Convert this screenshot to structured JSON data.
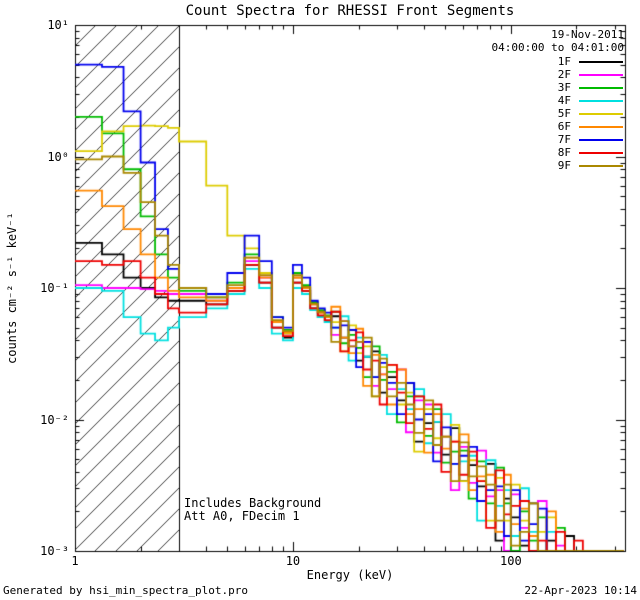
{
  "header": {
    "date": "19-Nov-2011",
    "time_range": "04:00:00 to 04:01:00"
  },
  "footer": {
    "generated_by": "Generated by hsi_min_spectra_plot.pro",
    "timestamp": "22-Apr-2023 10:14"
  },
  "chart_data": {
    "type": "line",
    "mode": "histogram-steps, log-log axes",
    "title": "Count Spectra for RHESSI Front Segments",
    "xlabel": "Energy (keV)",
    "ylabel": "counts cm⁻² s⁻¹ keV⁻¹",
    "xlim": [
      1,
      334
    ],
    "ylim": [
      0.001,
      10
    ],
    "x_tick_values": [
      1,
      10,
      100
    ],
    "x_tick_labels": [
      "1",
      "10",
      "100"
    ],
    "y_tick_values": [
      10,
      1,
      0.1,
      0.01,
      0.001
    ],
    "y_tick_labels": [
      "10¹",
      "10⁰",
      "10⁻¹",
      "10⁻²",
      "10⁻³"
    ],
    "hatch_region": {
      "xmin": 1,
      "xmax": 3
    },
    "annotations": [
      "Includes Background",
      "Att A0, FDecim 1"
    ],
    "energy_edges": [
      1.0,
      1.33,
      1.67,
      2.0,
      2.33,
      2.67,
      3.0,
      4,
      5,
      6,
      7,
      8,
      9,
      10,
      11,
      12,
      13,
      14,
      15,
      16.5,
      18,
      19.5,
      21,
      23,
      25,
      27,
      30,
      33,
      36,
      40,
      44,
      48,
      53,
      58,
      64,
      70,
      77,
      85,
      93,
      100,
      110,
      121,
      133,
      146,
      161,
      177,
      195,
      214,
      236,
      259,
      285,
      330
    ],
    "series": [
      {
        "name": "1F",
        "color": "#000000",
        "values": [
          0.22,
          0.18,
          0.12,
          0.1,
          0.085,
          0.08,
          0.08,
          0.075,
          0.095,
          0.15,
          0.11,
          0.05,
          0.042,
          0.11,
          0.095,
          0.07,
          0.06,
          0.055,
          0.061,
          0.042,
          0.048,
          0.028,
          0.03,
          0.033,
          0.016,
          0.021,
          0.014,
          0.019,
          0.0068,
          0.0094,
          0.0096,
          0.0054,
          0.0086,
          0.0034,
          0.0045,
          0.0031,
          0.0046,
          0.0012,
          0.0025,
          0.0018,
          0.0011,
          0.0023,
          0.001,
          0.0012,
          0.00046,
          0.0013,
          0.00043,
          0.00055,
          0.00059,
          0.00023,
          0.00026
        ]
      },
      {
        "name": "2F",
        "color": "#ff00ff",
        "values": [
          0.105,
          0.1,
          0.1,
          0.098,
          0.095,
          0.09,
          0.09,
          0.08,
          0.1,
          0.16,
          0.12,
          0.055,
          0.045,
          0.12,
          0.1,
          0.075,
          0.065,
          0.06,
          0.044,
          0.056,
          0.036,
          0.039,
          0.039,
          0.018,
          0.022,
          0.017,
          0.024,
          0.008,
          0.014,
          0.013,
          0.0056,
          0.0074,
          0.0029,
          0.0062,
          0.0033,
          0.0058,
          0.0026,
          0.0029,
          0.00084,
          0.0027,
          0.0015,
          0.00078,
          0.0024,
          0.00073,
          0.0011,
          0.00033,
          0.00059,
          0.00092,
          0.00023,
          0.00043,
          0.00023
        ]
      },
      {
        "name": "3F",
        "color": "#00bb00",
        "values": [
          2.0,
          1.5,
          0.8,
          0.35,
          0.18,
          0.12,
          0.095,
          0.085,
          0.11,
          0.18,
          0.13,
          0.06,
          0.048,
          0.13,
          0.105,
          0.078,
          0.068,
          0.062,
          0.066,
          0.038,
          0.044,
          0.035,
          0.021,
          0.036,
          0.02,
          0.023,
          0.0095,
          0.015,
          0.015,
          0.0075,
          0.012,
          0.0047,
          0.0057,
          0.0058,
          0.0025,
          0.0048,
          0.0023,
          0.0043,
          0.0023,
          0.0009,
          0.002,
          0.0012,
          0.0018,
          0.00055,
          0.0015,
          0.00065,
          0.00038,
          0.00064,
          0.0002,
          0.00059,
          0.00029
        ]
      },
      {
        "name": "4F",
        "color": "#00e0e0",
        "values": [
          0.1,
          0.095,
          0.06,
          0.045,
          0.04,
          0.05,
          0.06,
          0.07,
          0.09,
          0.14,
          0.1,
          0.045,
          0.04,
          0.1,
          0.09,
          0.068,
          0.06,
          0.055,
          0.05,
          0.061,
          0.028,
          0.042,
          0.03,
          0.021,
          0.031,
          0.011,
          0.017,
          0.012,
          0.017,
          0.0066,
          0.0096,
          0.011,
          0.0046,
          0.0048,
          0.0053,
          0.0017,
          0.0049,
          0.0022,
          0.0029,
          0.0013,
          0.003,
          0.0014,
          0.00066,
          0.0014,
          0.00069,
          0.00026,
          0.00097,
          0.00032,
          0.00047,
          0.00033,
          0.00016
        ]
      },
      {
        "name": "5F",
        "color": "#ddcc00",
        "values": [
          1.1,
          1.55,
          1.7,
          1.72,
          1.7,
          1.65,
          1.3,
          0.6,
          0.25,
          0.2,
          0.13,
          0.055,
          0.045,
          0.12,
          0.1,
          0.075,
          0.065,
          0.06,
          0.055,
          0.033,
          0.052,
          0.032,
          0.036,
          0.015,
          0.025,
          0.026,
          0.013,
          0.016,
          0.0057,
          0.012,
          0.0072,
          0.0074,
          0.0091,
          0.0034,
          0.0049,
          0.0034,
          0.0017,
          0.0036,
          0.0017,
          0.0032,
          0.0017,
          0.00065,
          0.0014,
          0.0018,
          0.00054,
          0.00078,
          0.00086,
          0.00023,
          0.00039,
          0.00046,
          0.00021
        ]
      },
      {
        "name": "6F",
        "color": "#ff8800",
        "values": [
          0.55,
          0.42,
          0.28,
          0.18,
          0.12,
          0.095,
          0.085,
          0.08,
          0.1,
          0.17,
          0.12,
          0.055,
          0.046,
          0.12,
          0.1,
          0.075,
          0.065,
          0.06,
          0.072,
          0.042,
          0.032,
          0.049,
          0.018,
          0.031,
          0.022,
          0.013,
          0.024,
          0.011,
          0.012,
          0.0056,
          0.011,
          0.006,
          0.0068,
          0.0077,
          0.0029,
          0.0037,
          0.0038,
          0.0014,
          0.0038,
          0.0016,
          0.0021,
          0.0013,
          0.00077,
          0.002,
          0.00039,
          0.001,
          0.00049,
          0.0006,
          0.0007,
          0.0002,
          0.00031
        ]
      },
      {
        "name": "7F",
        "color": "#0000ee",
        "values": [
          5.0,
          4.8,
          2.2,
          0.9,
          0.28,
          0.14,
          0.1,
          0.09,
          0.13,
          0.25,
          0.16,
          0.06,
          0.05,
          0.15,
          0.12,
          0.08,
          0.07,
          0.065,
          0.05,
          0.052,
          0.048,
          0.025,
          0.039,
          0.021,
          0.027,
          0.019,
          0.011,
          0.019,
          0.01,
          0.011,
          0.0048,
          0.0087,
          0.0046,
          0.0053,
          0.0062,
          0.0024,
          0.0029,
          0.0031,
          0.0013,
          0.0029,
          0.0012,
          0.0016,
          0.0021,
          0.00055,
          0.00085,
          0.00091,
          0.00027,
          0.00078,
          0.00031,
          0.00033,
          0.00034
        ]
      },
      {
        "name": "8F",
        "color": "#ee0000",
        "values": [
          0.16,
          0.15,
          0.16,
          0.12,
          0.09,
          0.07,
          0.065,
          0.075,
          0.095,
          0.15,
          0.11,
          0.05,
          0.043,
          0.11,
          0.095,
          0.07,
          0.062,
          0.057,
          0.066,
          0.033,
          0.04,
          0.046,
          0.024,
          0.028,
          0.013,
          0.026,
          0.016,
          0.0094,
          0.015,
          0.0085,
          0.013,
          0.004,
          0.0068,
          0.0038,
          0.0057,
          0.0034,
          0.0015,
          0.0041,
          0.0019,
          0.0022,
          0.0024,
          0.00091,
          0.0012,
          0.00036,
          0.0014,
          0.00059,
          0.0012,
          0.00028,
          0.00051,
          0.00026,
          0.00039
        ]
      },
      {
        "name": "9F",
        "color": "#aa8800",
        "values": [
          0.95,
          1.0,
          0.75,
          0.45,
          0.25,
          0.15,
          0.1,
          0.085,
          0.105,
          0.17,
          0.125,
          0.057,
          0.047,
          0.125,
          0.102,
          0.076,
          0.066,
          0.061,
          0.039,
          0.056,
          0.036,
          0.039,
          0.042,
          0.015,
          0.029,
          0.015,
          0.019,
          0.013,
          0.0079,
          0.014,
          0.0064,
          0.0074,
          0.0034,
          0.0067,
          0.0037,
          0.0044,
          0.0032,
          0.0017,
          0.0032,
          0.0011,
          0.0014,
          0.0023,
          0.00077,
          0.001,
          0.001,
          0.00039,
          0.00081,
          0.00041,
          0.00027,
          0.00066,
          0.00016
        ]
      }
    ]
  }
}
